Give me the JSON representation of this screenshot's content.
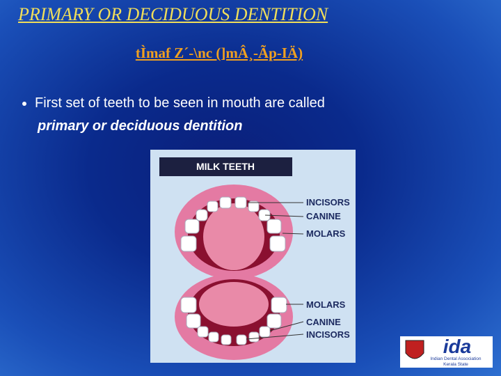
{
  "title": "PRIMARY OR DECIDUOUS DENTITION",
  "subtitle": "tÌmaf Z´-\\nc (]mÂ¸-Ãp-IÄ)",
  "bullet": {
    "text": "First set of teeth to be seen in mouth are called",
    "emphasis": "primary or deciduous dentition"
  },
  "figure": {
    "title": "MILK TEETH",
    "upper_labels": [
      "INCISORS",
      "CANINE",
      "MOLARS"
    ],
    "lower_labels": [
      "MOLARS",
      "CANINE",
      "INCISORS"
    ]
  },
  "logo": {
    "name": "ida",
    "line1": "Indian Dental Association",
    "line2": "Kerala State"
  }
}
